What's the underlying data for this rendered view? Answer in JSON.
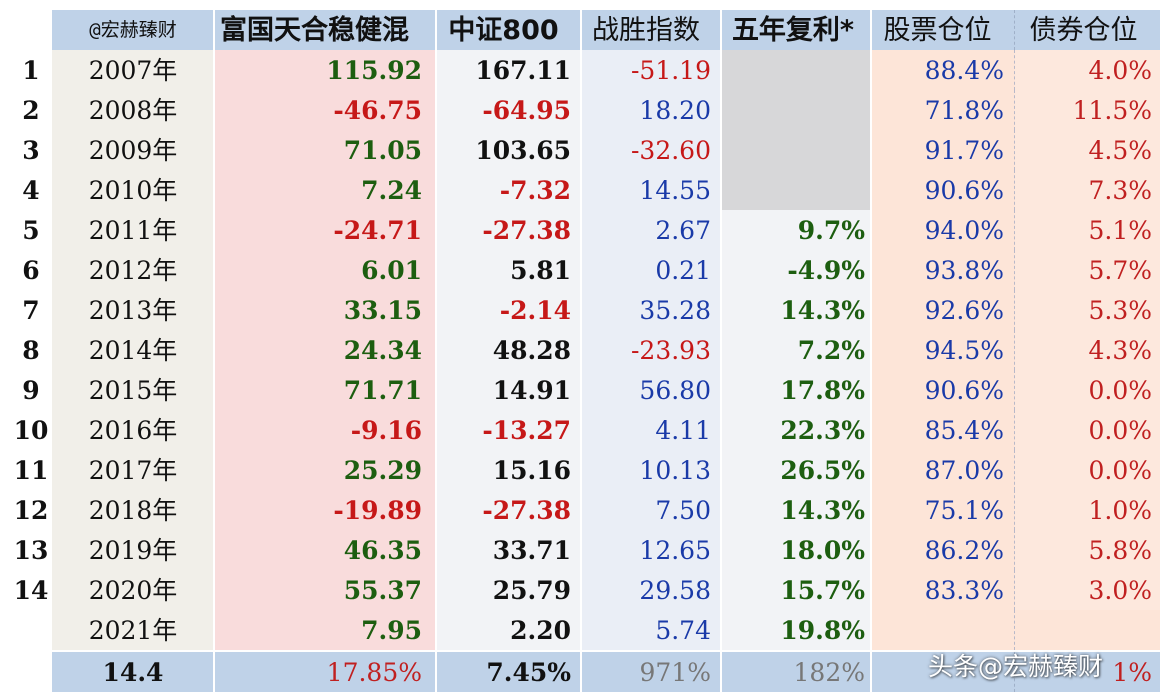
{
  "header": {
    "author": "@宏赫臻财",
    "fund": "富国天合稳健混",
    "index": "中证800",
    "beat": "战胜指数",
    "cagr5": "五年复利*",
    "stock": "股票仓位",
    "bond": "债券仓位"
  },
  "rows": [
    {
      "n": "1",
      "year": "2007年",
      "fund": "115.92",
      "idx": "167.11",
      "beat": "-51.19",
      "cagr": "",
      "stock": "88.4%",
      "bond": "4.0%"
    },
    {
      "n": "2",
      "year": "2008年",
      "fund": "-46.75",
      "idx": "-64.95",
      "beat": "18.20",
      "cagr": "",
      "stock": "71.8%",
      "bond": "11.5%"
    },
    {
      "n": "3",
      "year": "2009年",
      "fund": "71.05",
      "idx": "103.65",
      "beat": "-32.60",
      "cagr": "",
      "stock": "91.7%",
      "bond": "4.5%"
    },
    {
      "n": "4",
      "year": "2010年",
      "fund": "7.24",
      "idx": "-7.32",
      "beat": "14.55",
      "cagr": "",
      "stock": "90.6%",
      "bond": "7.3%"
    },
    {
      "n": "5",
      "year": "2011年",
      "fund": "-24.71",
      "idx": "-27.38",
      "beat": "2.67",
      "cagr": "9.7%",
      "stock": "94.0%",
      "bond": "5.1%"
    },
    {
      "n": "6",
      "year": "2012年",
      "fund": "6.01",
      "idx": "5.81",
      "beat": "0.21",
      "cagr": "-4.9%",
      "stock": "93.8%",
      "bond": "5.7%"
    },
    {
      "n": "7",
      "year": "2013年",
      "fund": "33.15",
      "idx": "-2.14",
      "beat": "35.28",
      "cagr": "14.3%",
      "stock": "92.6%",
      "bond": "5.3%"
    },
    {
      "n": "8",
      "year": "2014年",
      "fund": "24.34",
      "idx": "48.28",
      "beat": "-23.93",
      "cagr": "7.2%",
      "stock": "94.5%",
      "bond": "4.3%"
    },
    {
      "n": "9",
      "year": "2015年",
      "fund": "71.71",
      "idx": "14.91",
      "beat": "56.80",
      "cagr": "17.8%",
      "stock": "90.6%",
      "bond": "0.0%"
    },
    {
      "n": "10",
      "year": "2016年",
      "fund": "-9.16",
      "idx": "-13.27",
      "beat": "4.11",
      "cagr": "22.3%",
      "stock": "85.4%",
      "bond": "0.0%"
    },
    {
      "n": "11",
      "year": "2017年",
      "fund": "25.29",
      "idx": "15.16",
      "beat": "10.13",
      "cagr": "26.5%",
      "stock": "87.0%",
      "bond": "0.0%"
    },
    {
      "n": "12",
      "year": "2018年",
      "fund": "-19.89",
      "idx": "-27.38",
      "beat": "7.50",
      "cagr": "14.3%",
      "stock": "75.1%",
      "bond": "1.0%"
    },
    {
      "n": "13",
      "year": "2019年",
      "fund": "46.35",
      "idx": "33.71",
      "beat": "12.65",
      "cagr": "18.0%",
      "stock": "86.2%",
      "bond": "5.8%"
    },
    {
      "n": "14",
      "year": "2020年",
      "fund": "55.37",
      "idx": "25.79",
      "beat": "29.58",
      "cagr": "15.7%",
      "stock": "83.3%",
      "bond": "3.0%"
    },
    {
      "n": "",
      "year": "2021年",
      "fund": "7.95",
      "idx": "2.20",
      "beat": "5.74",
      "cagr": "19.8%",
      "stock": "",
      "bond": ""
    }
  ],
  "footer": {
    "years": "14.4",
    "fund": "17.85%",
    "idx": "7.45%",
    "beat": "971%",
    "cagr": "182%",
    "stock": "",
    "bond": "1%"
  },
  "watermark": "头条@宏赫臻财",
  "colors": {
    "positive": "#1d5e10",
    "negative": "#c61818",
    "header_bg": "#bfd2e8",
    "blue_text": "#1a3aa8"
  }
}
